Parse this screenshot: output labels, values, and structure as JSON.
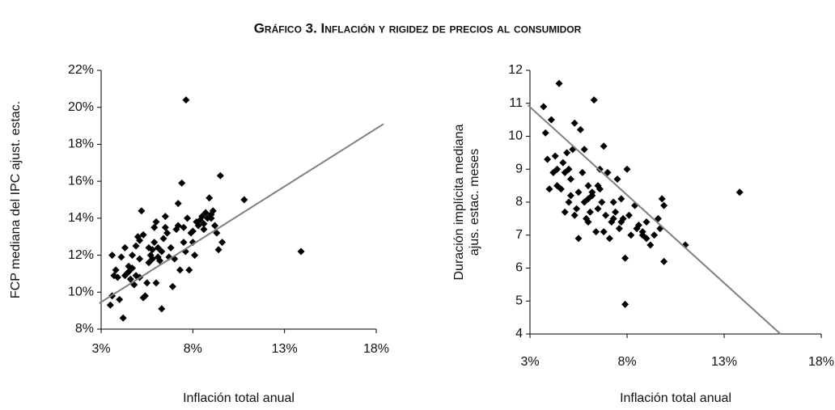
{
  "title": "Gráfico 3. Inflación y rigidez de precios al consumidor",
  "chart_data": [
    {
      "type": "scatter",
      "ylabel": [
        "FCP mediana del IPC ajust. estac."
      ],
      "xlabel": "Inflación total anual",
      "color": "#000000",
      "xlim": [
        3,
        18
      ],
      "xticks": [
        {
          "value": 3,
          "label": "3%"
        },
        {
          "value": 8,
          "label": "8%"
        },
        {
          "value": 13,
          "label": "13%"
        },
        {
          "value": 18,
          "label": "18%"
        }
      ],
      "ylim": [
        8,
        22
      ],
      "yticks": [
        {
          "value": 8,
          "label": "8%"
        },
        {
          "value": 10,
          "label": "10%"
        },
        {
          "value": 12,
          "label": "12%"
        },
        {
          "value": 14,
          "label": "14%"
        },
        {
          "value": 16,
          "label": "16%"
        },
        {
          "value": 18,
          "label": "18%"
        },
        {
          "value": 20,
          "label": "20%"
        },
        {
          "value": 22,
          "label": "22%"
        }
      ],
      "x": [
        3.5,
        3.6,
        3.7,
        3.8,
        3.6,
        3.9,
        4.0,
        4.2,
        4.1,
        4.3,
        4.4,
        4.5,
        4.6,
        4.7,
        4.8,
        4.9,
        5.0,
        5.1,
        5.2,
        5.1,
        5.3,
        5.4,
        5.5,
        5.6,
        5.7,
        5.8,
        5.9,
        6.0,
        6.1,
        6.0,
        6.2,
        6.3,
        6.4,
        6.5,
        6.6,
        6.7,
        6.8,
        6.9,
        7.0,
        7.1,
        7.2,
        7.3,
        7.4,
        7.5,
        7.6,
        7.7,
        7.63,
        7.8,
        7.9,
        8.0,
        8.1,
        8.2,
        8.3,
        8.4,
        8.5,
        8.6,
        8.7,
        8.8,
        8.9,
        9.0,
        9.1,
        9.2,
        9.3,
        9.5,
        9.4,
        9.6,
        9.0,
        8.6,
        10.8,
        13.9,
        4.5,
        4.9,
        5.6,
        6.1,
        5.3,
        5.8,
        4.7,
        5.9,
        6.5,
        7.2,
        7.5,
        8.0,
        6.3,
        5.1,
        4.3
      ],
      "y": [
        9.3,
        9.8,
        10.9,
        11.2,
        12.0,
        10.8,
        9.6,
        8.6,
        11.9,
        12.4,
        11.0,
        11.4,
        10.7,
        11.3,
        10.4,
        12.5,
        13.0,
        12.8,
        14.4,
        11.8,
        9.7,
        9.8,
        10.5,
        11.6,
        12.0,
        12.3,
        13.5,
        13.8,
        12.4,
        10.5,
        11.7,
        9.1,
        12.9,
        14.1,
        13.2,
        11.9,
        12.4,
        10.3,
        11.8,
        13.4,
        13.6,
        11.2,
        15.9,
        13.5,
        12.2,
        14.0,
        20.4,
        11.2,
        13.2,
        12.7,
        12.0,
        13.8,
        13.6,
        13.9,
        14.1,
        13.4,
        14.3,
        14.0,
        15.1,
        14.2,
        14.4,
        13.6,
        13.2,
        16.3,
        12.3,
        12.7,
        14.0,
        13.7,
        15.0,
        12.2,
        11.1,
        10.9,
        12.4,
        11.9,
        13.1,
        11.8,
        12.0,
        12.7,
        13.5,
        14.8,
        12.7,
        13.3,
        12.2,
        10.8,
        10.9
      ],
      "trendline": {
        "color": "#808080",
        "x": [
          2.9,
          18.4
        ],
        "y": [
          9.4,
          19.1
        ]
      }
    },
    {
      "type": "scatter",
      "ylabel": [
        "Duración implícita mediana",
        "ajus. estac. meses"
      ],
      "xlabel": "Inflación total anual",
      "color": "#000000",
      "xlim": [
        3,
        18
      ],
      "xticks": [
        {
          "value": 3,
          "label": "3%"
        },
        {
          "value": 8,
          "label": "8%"
        },
        {
          "value": 13,
          "label": "13%"
        },
        {
          "value": 18,
          "label": "18%"
        }
      ],
      "ylim": [
        4,
        12
      ],
      "yticks": [
        4,
        5,
        6,
        7,
        8,
        9,
        10,
        11,
        12
      ],
      "x": [
        3.7,
        3.8,
        3.9,
        4.0,
        4.1,
        4.2,
        4.3,
        4.4,
        4.5,
        4.6,
        4.7,
        4.8,
        4.9,
        5.0,
        5.1,
        5.2,
        5.3,
        5.4,
        5.5,
        5.6,
        5.7,
        5.8,
        5.9,
        6.0,
        6.1,
        6.2,
        6.3,
        6.4,
        6.5,
        6.6,
        6.7,
        6.8,
        6.9,
        7.0,
        7.1,
        7.2,
        7.3,
        7.4,
        7.5,
        7.6,
        7.7,
        7.8,
        7.9,
        7.9,
        8.0,
        8.1,
        8.2,
        8.4,
        8.6,
        8.8,
        9.0,
        9.2,
        9.4,
        9.6,
        9.8,
        9.9,
        9.7,
        9.9,
        11.0,
        13.8,
        5.0,
        5.5,
        6.0,
        6.5,
        4.8,
        5.3,
        6.2,
        6.8,
        7.3,
        8.5,
        9.0,
        5.8,
        6.6,
        4.4,
        5.1,
        6.0,
        7.7,
        8.8
      ],
      "y": [
        10.9,
        10.1,
        9.3,
        8.4,
        10.5,
        8.9,
        9.4,
        8.5,
        11.6,
        8.4,
        9.2,
        8.9,
        9.5,
        9.0,
        8.2,
        9.6,
        10.4,
        7.8,
        6.9,
        10.2,
        8.9,
        9.6,
        7.5,
        8.5,
        7.7,
        8.2,
        11.1,
        7.1,
        7.8,
        8.4,
        8.0,
        9.7,
        7.6,
        8.9,
        6.9,
        7.4,
        8.0,
        7.7,
        8.7,
        7.2,
        8.1,
        7.5,
        6.3,
        4.9,
        9.0,
        7.6,
        7.0,
        7.9,
        7.3,
        7.1,
        7.4,
        6.7,
        7.0,
        7.5,
        8.1,
        6.2,
        7.2,
        7.9,
        6.7,
        8.3,
        8.0,
        8.3,
        7.4,
        8.5,
        7.7,
        7.6,
        8.3,
        7.1,
        7.5,
        7.2,
        6.9,
        8.0,
        9.0,
        9.0,
        8.7,
        8.1,
        7.4,
        7.0
      ],
      "trendline": {
        "color": "#808080",
        "x": [
          2.9,
          15.9
        ],
        "y": [
          10.94,
          4
        ]
      }
    }
  ]
}
